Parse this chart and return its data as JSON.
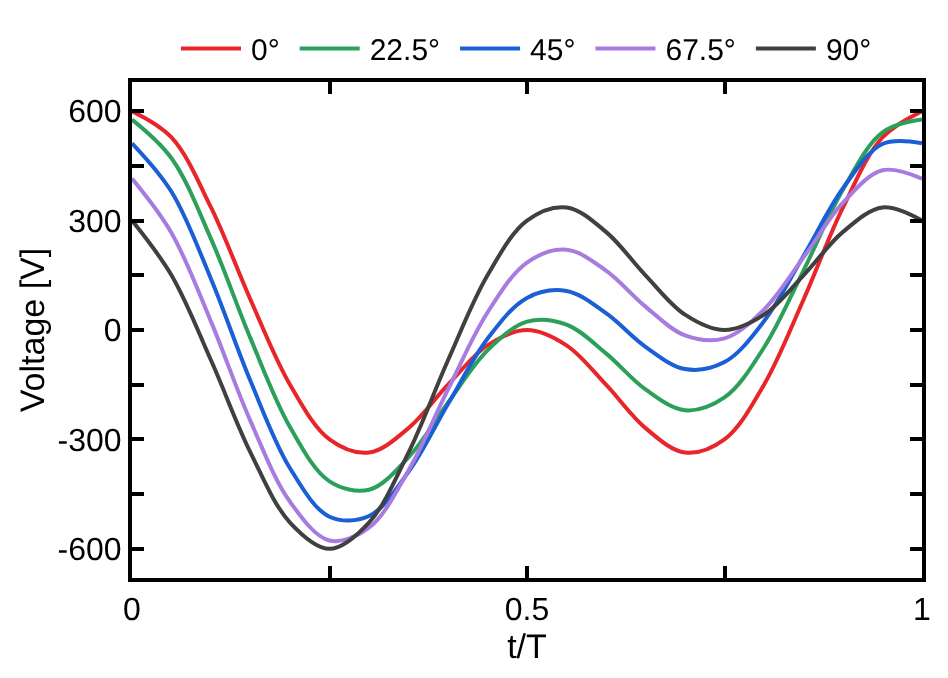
{
  "chart_data": {
    "type": "line",
    "xlabel": "t/T",
    "ylabel": "Voltage [V]",
    "x": [
      0,
      0.05,
      0.1,
      0.15,
      0.2,
      0.25,
      0.3,
      0.35,
      0.4,
      0.45,
      0.5,
      0.55,
      0.6,
      0.65,
      0.7,
      0.75,
      0.8,
      0.85,
      0.9,
      0.95,
      1
    ],
    "series": [
      {
        "name": "0°",
        "color": "#e8262a",
        "values": [
          600,
          528,
          336,
          83,
          -150,
          -300,
          -336,
          -269,
          -150,
          -42,
          0,
          -42,
          -150,
          -269,
          -336,
          -300,
          -150,
          83,
          336,
          528,
          600
        ]
      },
      {
        "name": "22.5°",
        "color": "#2ca05a",
        "values": [
          577,
          471,
          250,
          -23,
          -266,
          -415,
          -438,
          -349,
          -199,
          -56,
          23,
          15,
          -64,
          -163,
          -220,
          -185,
          -48,
          163,
          385,
          542,
          577
        ]
      },
      {
        "name": "45°",
        "color": "#1a5fd6",
        "values": [
          512,
          379,
          140,
          -140,
          -379,
          -512,
          -510,
          -389,
          -203,
          -24,
          88,
          107,
          46,
          -46,
          -107,
          -88,
          24,
          203,
          389,
          510,
          512
        ]
      },
      {
        "name": "67.5°",
        "color": "#a77be0",
        "values": [
          415,
          266,
          23,
          -250,
          -471,
          -577,
          -542,
          -385,
          -163,
          48,
          185,
          220,
          163,
          64,
          -15,
          -23,
          56,
          199,
          349,
          438,
          415
        ]
      },
      {
        "name": "90°",
        "color": "#404040",
        "values": [
          300,
          150,
          -83,
          -336,
          -528,
          -600,
          -528,
          -336,
          -83,
          150,
          300,
          336,
          269,
          150,
          42,
          0,
          42,
          150,
          269,
          336,
          300
        ]
      }
    ],
    "xlim": [
      0,
      1
    ],
    "ylim": [
      -680,
      680
    ],
    "xticks": [
      0,
      {
        "value": 0.25,
        "label": null
      },
      0.5,
      {
        "value": 0.75,
        "label": null
      },
      1
    ],
    "yticks": [
      -600,
      {
        "value": -450,
        "label": null
      },
      -300,
      {
        "value": -150,
        "label": null
      },
      0,
      {
        "value": 150,
        "label": null
      },
      300,
      {
        "value": 450,
        "label": null
      },
      600
    ],
    "legend": "top",
    "marker": "none",
    "line_style": "solid"
  }
}
